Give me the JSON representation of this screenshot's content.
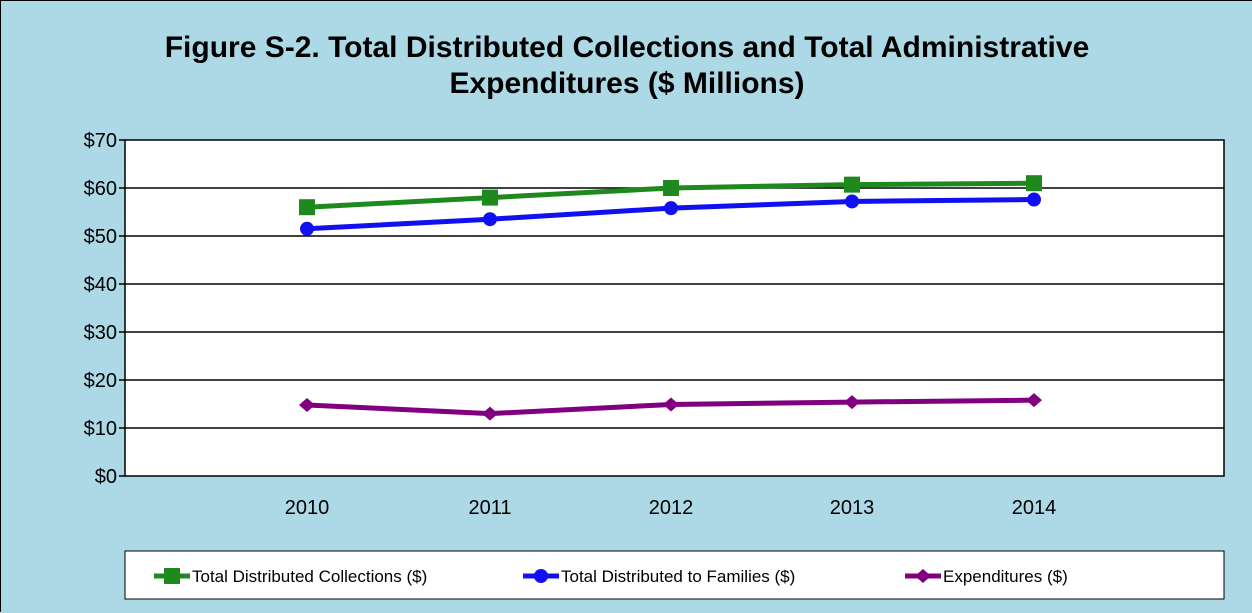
{
  "chart_data": {
    "type": "line",
    "title_lines": [
      "Figure S-2.  Total Distributed Collections and Total Administrative",
      "Expenditures ($ Millions)"
    ],
    "categories": [
      "2010",
      "2011",
      "2012",
      "2013",
      "2014"
    ],
    "ylim": [
      0,
      70
    ],
    "yticks": [
      0,
      10,
      20,
      30,
      40,
      50,
      60,
      70
    ],
    "ytick_labels": [
      "$0",
      "$10",
      "$20",
      "$30",
      "$40",
      "$50",
      "$60",
      "$70"
    ],
    "grid": true,
    "legend_position": "bottom",
    "background_color": "#ADD8E6",
    "plot_background": "#FFFFFF",
    "series": [
      {
        "name": "Total Distributed Collections ($)",
        "color": "#1E8A1E",
        "marker": "square",
        "values": [
          56,
          58,
          60,
          60.7,
          61
        ]
      },
      {
        "name": "Total Distributed to Families ($)",
        "color": "#1010F0",
        "marker": "circle",
        "values": [
          51.5,
          53.5,
          55.8,
          57.2,
          57.6
        ]
      },
      {
        "name": "Expenditures ($)",
        "color": "#800080",
        "marker": "diamond",
        "values": [
          14.8,
          13,
          14.9,
          15.4,
          15.8
        ]
      }
    ]
  }
}
